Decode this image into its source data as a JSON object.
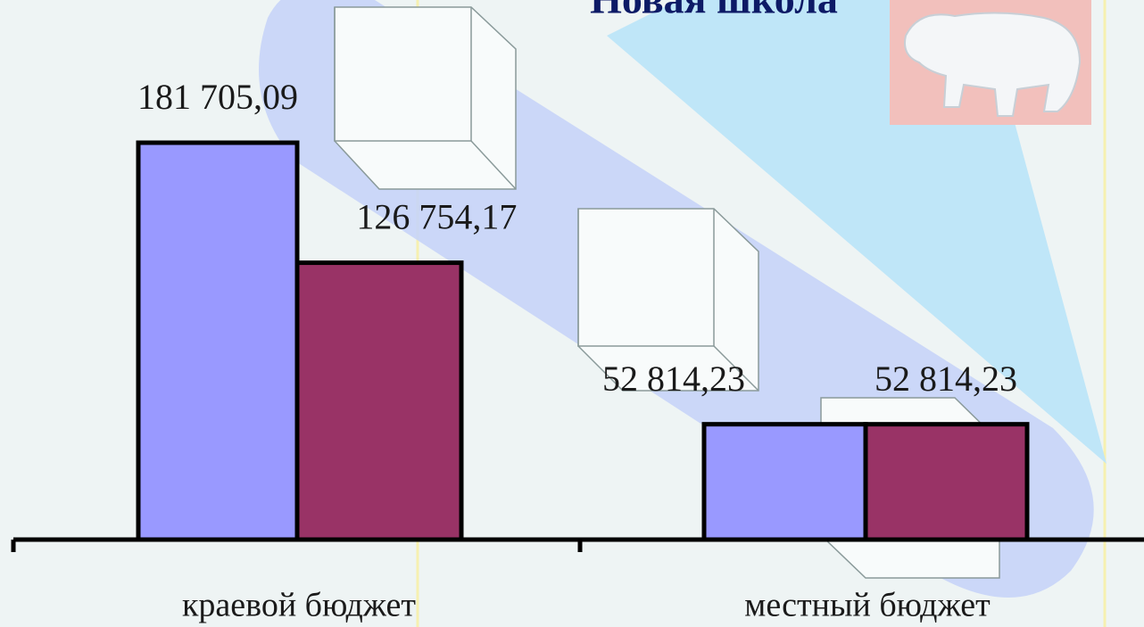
{
  "chart_data": {
    "type": "bar",
    "title": "Новая школа",
    "categories": [
      "краевой бюджет",
      "местный бюджет"
    ],
    "series": [
      {
        "color": "#9999ff",
        "values": [
          181705.09,
          52814.23
        ],
        "value_labels": [
          "181 705,09",
          "52 814,23"
        ]
      },
      {
        "color": "#993366",
        "values": [
          126754.17,
          52814.23
        ],
        "value_labels": [
          "126 754,17",
          "52 814,23"
        ]
      }
    ]
  }
}
